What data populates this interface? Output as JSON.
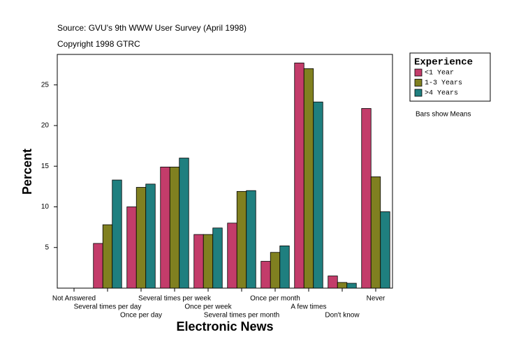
{
  "chart_data": {
    "type": "bar",
    "title": "Source: GVU's 9th WWW User Survey (April 1998)",
    "subtitle": "Copyright 1998 GTRC",
    "x_label": "Electronic News",
    "y_label": "Percent",
    "note": "Bars show Means",
    "legend_title": "Experience",
    "legend_position": "right",
    "categories": [
      "Not Answered",
      "Several times per day",
      "Once per day",
      "Several times per week",
      "Once per week",
      "Several times per month",
      "Once per month",
      "A few times",
      "Don't know",
      "Never"
    ],
    "series": [
      {
        "name": "<1 Year",
        "color": "#c33c6a",
        "values": [
          0,
          5.5,
          10.0,
          14.9,
          6.6,
          8.0,
          3.3,
          27.7,
          1.5,
          22.1
        ]
      },
      {
        "name": "1-3 Years",
        "color": "#808020",
        "values": [
          0,
          7.8,
          12.4,
          14.9,
          6.6,
          11.9,
          4.4,
          27.0,
          0.7,
          13.7
        ]
      },
      {
        "name": ">4 Years",
        "color": "#1f7f7f",
        "values": [
          0,
          13.3,
          12.8,
          16.0,
          7.4,
          12.0,
          5.2,
          22.9,
          0.6,
          9.4
        ]
      }
    ],
    "ylim": [
      0,
      28.75
    ],
    "yticks": [
      5,
      10,
      15,
      20,
      25
    ],
    "grid": false
  }
}
